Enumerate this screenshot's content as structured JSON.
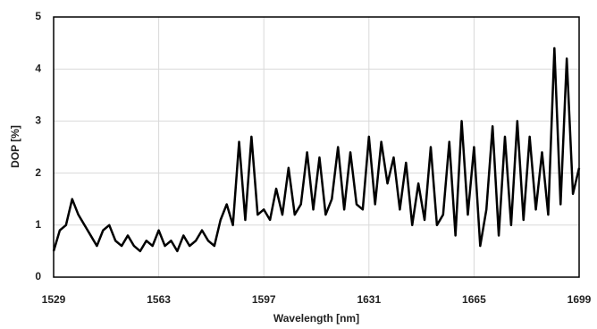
{
  "chart_data": {
    "type": "line",
    "x_label": "Wavelength [nm]",
    "y_label": "DOP [%]",
    "x": [
      1529,
      1531,
      1533,
      1535,
      1537,
      1539,
      1541,
      1543,
      1545,
      1547,
      1549,
      1551,
      1553,
      1555,
      1557,
      1559,
      1561,
      1563,
      1565,
      1567,
      1569,
      1571,
      1573,
      1575,
      1577,
      1579,
      1581,
      1583,
      1585,
      1587,
      1589,
      1591,
      1593,
      1595,
      1597,
      1599,
      1601,
      1603,
      1605,
      1607,
      1609,
      1611,
      1613,
      1615,
      1617,
      1619,
      1621,
      1623,
      1625,
      1627,
      1629,
      1631,
      1633,
      1635,
      1637,
      1639,
      1641,
      1643,
      1645,
      1647,
      1649,
      1651,
      1653,
      1655,
      1657,
      1659,
      1661,
      1663,
      1665,
      1667,
      1669,
      1671,
      1673,
      1675,
      1677,
      1679,
      1681,
      1683,
      1685,
      1687,
      1689,
      1691,
      1693,
      1695,
      1697,
      1699
    ],
    "series": [
      {
        "color": "#000000",
        "values": [
          0.5,
          0.9,
          1.0,
          1.5,
          1.2,
          1.0,
          0.8,
          0.6,
          0.9,
          1.0,
          0.7,
          0.6,
          0.8,
          0.6,
          0.5,
          0.7,
          0.6,
          0.9,
          0.6,
          0.7,
          0.5,
          0.8,
          0.6,
          0.7,
          0.9,
          0.7,
          0.6,
          1.1,
          1.4,
          1.0,
          2.6,
          1.1,
          2.7,
          1.2,
          1.3,
          1.1,
          1.7,
          1.2,
          2.1,
          1.2,
          1.4,
          2.4,
          1.3,
          2.3,
          1.2,
          1.5,
          2.5,
          1.3,
          2.4,
          1.4,
          1.3,
          2.7,
          1.4,
          2.6,
          1.8,
          2.3,
          1.3,
          2.2,
          1.0,
          1.8,
          1.1,
          2.5,
          1.0,
          1.2,
          2.6,
          0.8,
          3.0,
          1.2,
          2.5,
          0.6,
          1.3,
          2.9,
          0.8,
          2.7,
          1.0,
          3.0,
          1.1,
          2.7,
          1.3,
          2.4,
          1.2,
          4.4,
          1.4,
          4.2,
          1.6,
          2.1
        ]
      }
    ],
    "xlim": [
      1529,
      1699
    ],
    "xticks": [
      1529,
      1563,
      1597,
      1631,
      1665,
      1699
    ],
    "ylim": [
      0,
      5
    ],
    "yticks": [
      0,
      1,
      2,
      3,
      4,
      5
    ],
    "grid": true
  }
}
